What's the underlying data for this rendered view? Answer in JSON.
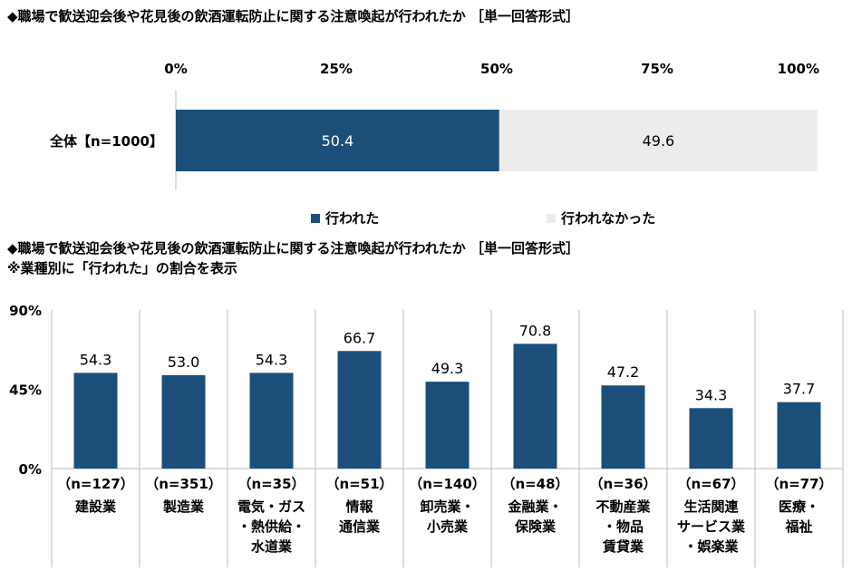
{
  "top_title": "◆職場で歓送迎会後や花見後の飲酒運転防止に関する注意喚起が行われたか ［単一回答形式］",
  "bottom_title": "◆職場で歓送迎会後や花見後の飲酒運転防止に関する注意喚起が行われたか ［単一回答形式］",
  "bottom_subtitle": "※業種別に「行われた」の割合を表示",
  "legend": [
    {
      "label": "行われた",
      "color": "#1b4f7a"
    },
    {
      "label": "行われなかった",
      "color": "#ececec"
    }
  ],
  "chart_data": [
    {
      "type": "bar",
      "orientation": "horizontal-stacked-100",
      "categories": [
        "全体【n=1000】"
      ],
      "series": [
        {
          "name": "行われた",
          "values": [
            50.4
          ],
          "color": "#1b4f7a"
        },
        {
          "name": "行われなかった",
          "values": [
            49.6
          ],
          "color": "#ececec"
        }
      ],
      "ticks": [
        "0%",
        "25%",
        "50%",
        "75%",
        "100%"
      ],
      "xlim": [
        0,
        100
      ],
      "legend_position": "bottom"
    },
    {
      "type": "bar",
      "categories": [
        "建設業",
        "製造業",
        "電気・ガス・熱供給・水道業",
        "情報通信業",
        "卸売業・小売業",
        "金融業・保険業",
        "不動産業・物品賃貸業",
        "生活関連サービス業・娯楽業",
        "医療・福祉"
      ],
      "category_lines": [
        [
          "建設業"
        ],
        [
          "製造業"
        ],
        [
          "電気・ガス",
          "・熱供給・",
          "水道業"
        ],
        [
          "情報",
          "通信業"
        ],
        [
          "卸売業・",
          "小売業"
        ],
        [
          "金融業・",
          "保険業"
        ],
        [
          "不動産業",
          "・物品",
          "賃貸業"
        ],
        [
          "生活関連",
          "サービス業",
          "・娯楽業"
        ],
        [
          "医療・",
          "福祉"
        ]
      ],
      "n_labels": [
        "（n=127）",
        "（n=351）",
        "（n=35）",
        "（n=51）",
        "（n=140）",
        "（n=48）",
        "（n=36）",
        "（n=67）",
        "（n=77）"
      ],
      "values": [
        54.3,
        53.0,
        54.3,
        66.7,
        49.3,
        70.8,
        47.2,
        34.3,
        37.7
      ],
      "value_labels": [
        "54.3",
        "53.0",
        "54.3",
        "66.7",
        "49.3",
        "70.8",
        "47.2",
        "34.3",
        "37.7"
      ],
      "ticks": [
        "0%",
        "45%",
        "90%"
      ],
      "ylim": [
        0,
        90
      ],
      "color": "#1b4f7a"
    }
  ]
}
